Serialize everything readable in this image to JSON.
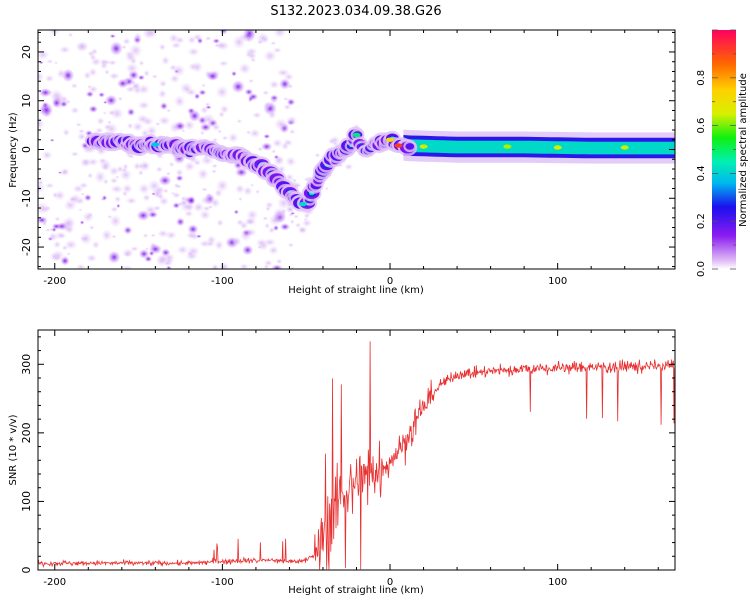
{
  "title": "S132.2023.034.09.38.G26",
  "chart_data": [
    {
      "type": "heatmap",
      "xlabel": "Height of straight line (km)",
      "ylabel": "Frequency (Hz)",
      "xlim": [
        -210,
        170
      ],
      "ylim": [
        -24.5,
        24.5
      ],
      "xticks": [
        -200,
        -100,
        0,
        100
      ],
      "yticks": [
        -20,
        -10,
        0,
        10,
        20
      ],
      "colorbar": {
        "label": "Normalized spectral amplitude",
        "range": [
          0,
          1
        ],
        "ticks": [
          0.0,
          0.2,
          0.4,
          0.6,
          0.8
        ]
      },
      "ridge": [
        {
          "x": -178,
          "y": 2.0
        },
        {
          "x": -160,
          "y": 1.5
        },
        {
          "x": -150,
          "y": 0.5
        },
        {
          "x": -140,
          "y": 1.0
        },
        {
          "x": -130,
          "y": 1.0
        },
        {
          "x": -120,
          "y": 0.0
        },
        {
          "x": -110,
          "y": 0.5
        },
        {
          "x": -100,
          "y": -0.5
        },
        {
          "x": -90,
          "y": -1.5
        },
        {
          "x": -80,
          "y": -3.0
        },
        {
          "x": -70,
          "y": -5.0
        },
        {
          "x": -62,
          "y": -8.0
        },
        {
          "x": -55,
          "y": -11.0
        },
        {
          "x": -50,
          "y": -11.5
        },
        {
          "x": -45,
          "y": -8.0
        },
        {
          "x": -40,
          "y": -4.5
        },
        {
          "x": -35,
          "y": -2.0
        },
        {
          "x": -30,
          "y": -1.0
        },
        {
          "x": -25,
          "y": 0.5
        },
        {
          "x": -20,
          "y": 3.0
        },
        {
          "x": -15,
          "y": 0.0
        },
        {
          "x": -10,
          "y": 1.0
        },
        {
          "x": 0,
          "y": 2.0
        },
        {
          "x": 5,
          "y": 1.0
        },
        {
          "x": 10,
          "y": 0.8
        },
        {
          "x": 40,
          "y": 0.5
        },
        {
          "x": 80,
          "y": 0.5
        },
        {
          "x": 120,
          "y": 0.3
        },
        {
          "x": 170,
          "y": 0.3
        }
      ]
    },
    {
      "type": "line",
      "xlabel": "Height of straight line (km)",
      "ylabel": "SNR (10 * v/v)",
      "xlim": [
        -210,
        170
      ],
      "ylim": [
        0,
        350
      ],
      "xticks": [
        -200,
        -100,
        0,
        100
      ],
      "yticks": [
        0,
        100,
        200,
        300
      ],
      "series_color": "#e83030",
      "trend": [
        {
          "x": -210,
          "y": 10
        },
        {
          "x": -120,
          "y": 10
        },
        {
          "x": -90,
          "y": 14
        },
        {
          "x": -70,
          "y": 14
        },
        {
          "x": -55,
          "y": 12
        },
        {
          "x": -45,
          "y": 20
        },
        {
          "x": -40,
          "y": 50
        },
        {
          "x": -35,
          "y": 80
        },
        {
          "x": -30,
          "y": 110
        },
        {
          "x": -25,
          "y": 120
        },
        {
          "x": -20,
          "y": 125
        },
        {
          "x": -15,
          "y": 135
        },
        {
          "x": -10,
          "y": 140
        },
        {
          "x": -5,
          "y": 150
        },
        {
          "x": 0,
          "y": 160
        },
        {
          "x": 10,
          "y": 190
        },
        {
          "x": 20,
          "y": 240
        },
        {
          "x": 30,
          "y": 270
        },
        {
          "x": 40,
          "y": 285
        },
        {
          "x": 60,
          "y": 290
        },
        {
          "x": 100,
          "y": 295
        },
        {
          "x": 170,
          "y": 298
        }
      ]
    }
  ]
}
